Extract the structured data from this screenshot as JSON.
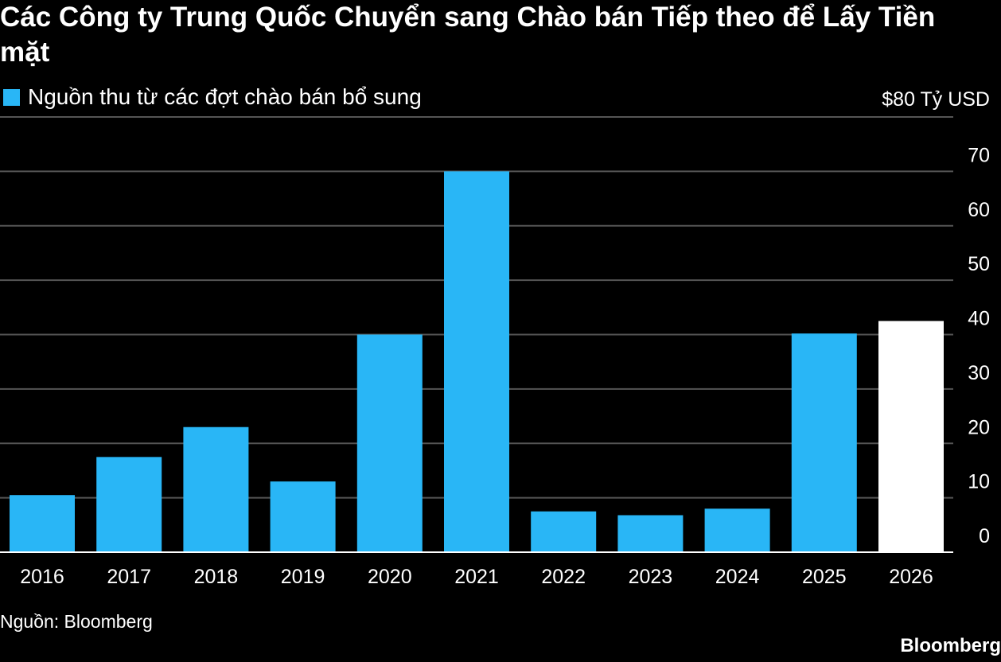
{
  "title": "Các Công ty Trung Quốc Chuyển sang Chào bán Tiếp theo để Lấy Tiền mặt",
  "source": "Nguồn: Bloomberg",
  "brand": "Bloomberg",
  "colors": {
    "background": "#000000",
    "bar": "#29b6f6",
    "highlight_bar": "#ffffff",
    "grid": "#555555",
    "text": "#ffffff"
  },
  "chart_data": {
    "type": "bar",
    "title": "Các Công ty Trung Quốc Chuyển sang Chào bán Tiếp theo để Lấy Tiền mặt",
    "categories": [
      "2016",
      "2017",
      "2018",
      "2019",
      "2020",
      "2021",
      "2022",
      "2023",
      "2024",
      "2025",
      "2026"
    ],
    "series": [
      {
        "name": "Nguồn thu từ các đợt chào bán bổ sung",
        "values": [
          10.5,
          17.5,
          23,
          13,
          40,
          70,
          7.5,
          6.8,
          8,
          40.2,
          42.5
        ]
      }
    ],
    "highlight_category": "2026",
    "ylim": [
      0,
      80
    ],
    "yticks": [
      0,
      10,
      20,
      30,
      40,
      50,
      60,
      70
    ],
    "ytick_labels": [
      "0",
      "10",
      "20",
      "30",
      "40",
      "50",
      "60",
      "70"
    ],
    "top_tick_label": "$80 Tỷ USD",
    "y_axis_side": "right",
    "grid": true,
    "legend_position": "top-left"
  }
}
